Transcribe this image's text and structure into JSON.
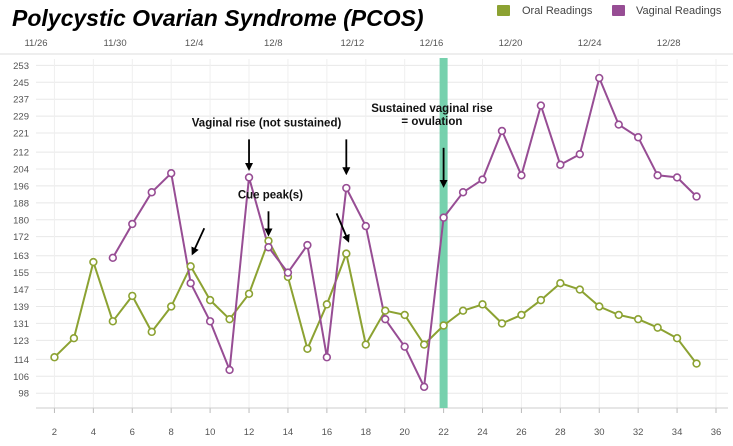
{
  "chart_data": {
    "type": "line",
    "title": "Polycystic Ovarian Syndrome (PCOS)",
    "xlabel": "",
    "ylabel": "",
    "xlim": [
      1,
      36
    ],
    "ylim": [
      91,
      256
    ],
    "top_axis_dates": [
      "11/26",
      "11/30",
      "12/4",
      "12/8",
      "12/12",
      "12/16",
      "12/20",
      "12/24",
      "12/28"
    ],
    "top_axis_positions": [
      0,
      4,
      8,
      12,
      16,
      20,
      24,
      28,
      32
    ],
    "x_ticks": [
      2,
      4,
      6,
      8,
      10,
      12,
      14,
      16,
      18,
      20,
      22,
      24,
      26,
      28,
      30,
      32,
      34,
      36
    ],
    "y_ticks": [
      98,
      106,
      114,
      123,
      131,
      139,
      147,
      155,
      163,
      172,
      180,
      188,
      196,
      204,
      212,
      221,
      229,
      237,
      245,
      253
    ],
    "grid": true,
    "legend_position": "top-right",
    "highlight_band": {
      "x": 22,
      "color": "#6fcfa9"
    },
    "series": [
      {
        "name": "Oral Readings",
        "color": "#8ca232",
        "x": [
          2,
          3,
          4,
          5,
          6,
          7,
          8,
          9,
          10,
          11,
          12,
          13,
          14,
          15,
          16,
          17,
          18,
          19,
          20,
          21,
          22,
          23,
          24,
          25,
          26,
          27,
          28,
          29,
          30,
          31,
          32,
          33,
          34,
          35
        ],
        "values": [
          115,
          124,
          160,
          132,
          144,
          127,
          139,
          158,
          142,
          133,
          145,
          170,
          153,
          119,
          140,
          164,
          121,
          137,
          135,
          121,
          130,
          137,
          140,
          131,
          135,
          142,
          150,
          147,
          139,
          135,
          133,
          129,
          124,
          112
        ]
      },
      {
        "name": "Vaginal Readings",
        "color": "#974d94",
        "x": [
          5,
          6,
          7,
          8,
          9,
          10,
          11,
          12,
          13,
          14,
          15,
          16,
          17,
          18,
          19,
          20,
          21,
          22,
          23,
          24,
          25,
          26,
          27,
          28,
          29,
          30,
          31,
          32,
          33,
          34,
          35
        ],
        "values": [
          162,
          178,
          193,
          202,
          150,
          132,
          109,
          200,
          167,
          155,
          168,
          115,
          195,
          177,
          133,
          120,
          101,
          181,
          193,
          199,
          222,
          201,
          234,
          206,
          211,
          247,
          225,
          219,
          201,
          200,
          191
        ]
      }
    ],
    "annotations": [
      {
        "lines": [
          "Vaginal rise (not sustained)"
        ],
        "x": 12.9,
        "y": 224
      },
      {
        "lines": [
          "Cue peak(s)"
        ],
        "x": 13.1,
        "y": 190
      },
      {
        "lines": [
          "Sustained vaginal rise",
          "= ovulation"
        ],
        "x": 21.4,
        "y": 231
      }
    ],
    "arrows": [
      {
        "from": [
          12.0,
          218
        ],
        "to": [
          12.0,
          204
        ]
      },
      {
        "from": [
          17.0,
          218
        ],
        "to": [
          17.0,
          202
        ]
      },
      {
        "from": [
          13.0,
          184
        ],
        "to": [
          13.0,
          173
        ]
      },
      {
        "from": [
          9.7,
          176
        ],
        "to": [
          9.1,
          164
        ]
      },
      {
        "from": [
          16.5,
          183
        ],
        "to": [
          17.1,
          170
        ]
      },
      {
        "from": [
          22.0,
          214
        ],
        "to": [
          22.0,
          196
        ]
      }
    ]
  }
}
